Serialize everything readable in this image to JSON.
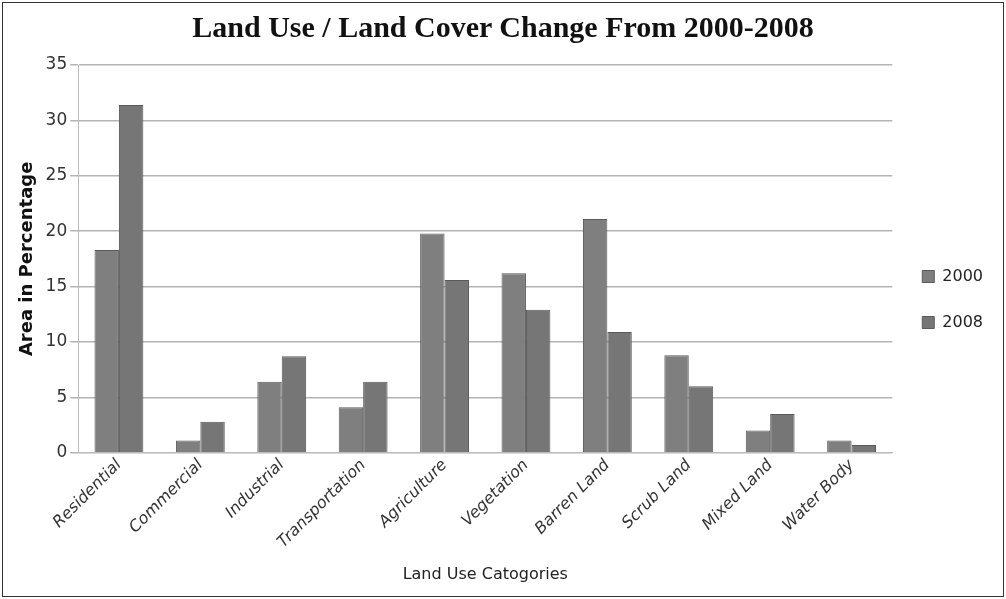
{
  "chart_data": {
    "type": "bar",
    "title": "Land Use / Land Cover Change From 2000-2008",
    "xlabel": "Land Use Catogories",
    "ylabel": "Area in Percentage",
    "categories": [
      "Residential",
      "Commercial",
      "Industrial",
      "Transportation",
      "Agriculture",
      "Vegetation",
      "Barren Land",
      "Scrub Land",
      "Mixed Land",
      "Water Body"
    ],
    "series": [
      {
        "name": "2000",
        "color": "#7f7f7f",
        "values": [
          18.3,
          1.1,
          6.4,
          4.1,
          19.8,
          16.2,
          21.1,
          8.8,
          2.0,
          1.1
        ]
      },
      {
        "name": "2008",
        "color": "#767676",
        "values": [
          31.4,
          2.8,
          8.7,
          6.4,
          15.6,
          12.9,
          10.9,
          6.0,
          3.5,
          0.7
        ]
      }
    ],
    "ylim": [
      0,
      35
    ],
    "yticks": [
      0,
      5,
      10,
      15,
      20,
      25,
      30,
      35
    ],
    "grid": "y",
    "legend": "right"
  }
}
